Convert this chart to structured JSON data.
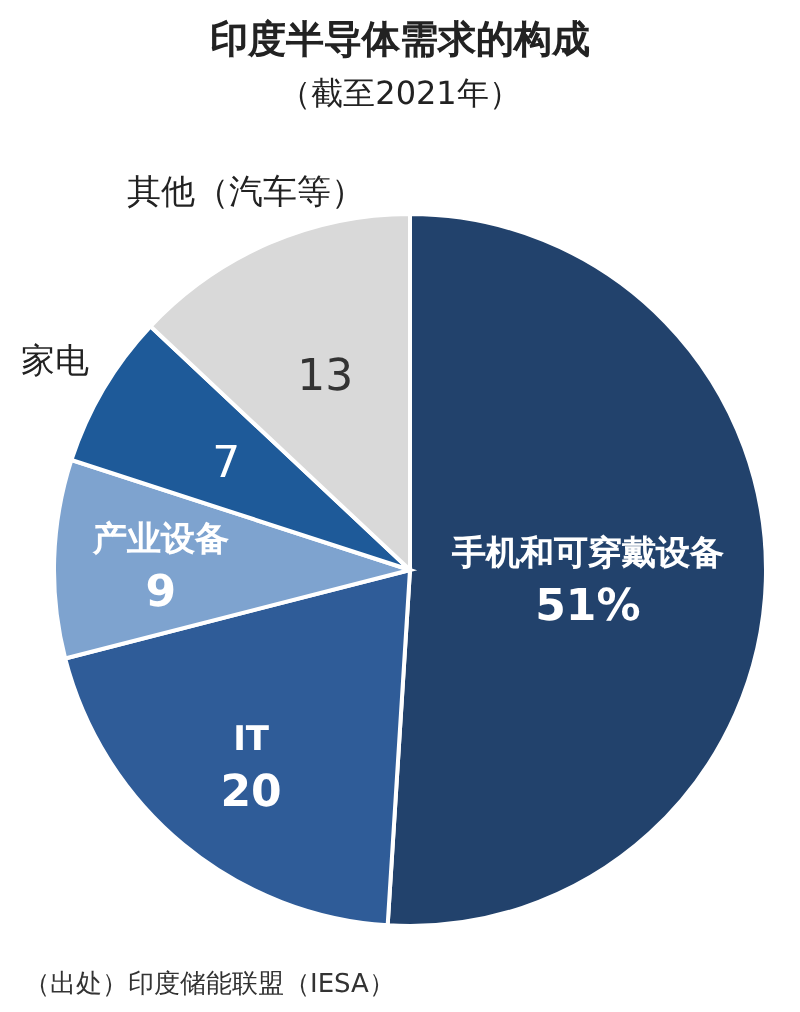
{
  "chart_data": {
    "type": "pie",
    "title": "印度半导体需求的构成",
    "subtitle": "（截至2021年）",
    "categories": [
      "手机和可穿戴设备",
      "IT",
      "产业设备",
      "家电",
      "其他（汽车等）"
    ],
    "values": [
      51,
      20,
      9,
      7,
      13
    ],
    "value_labels": [
      "51%",
      "20",
      "9",
      "7",
      "13"
    ],
    "colors": [
      "#22426c",
      "#2f5c98",
      "#7ea3cf",
      "#1e5a99",
      "#d9d9d9"
    ],
    "annotations": [
      "（出处）印度储能联盟（IESA）"
    ]
  }
}
